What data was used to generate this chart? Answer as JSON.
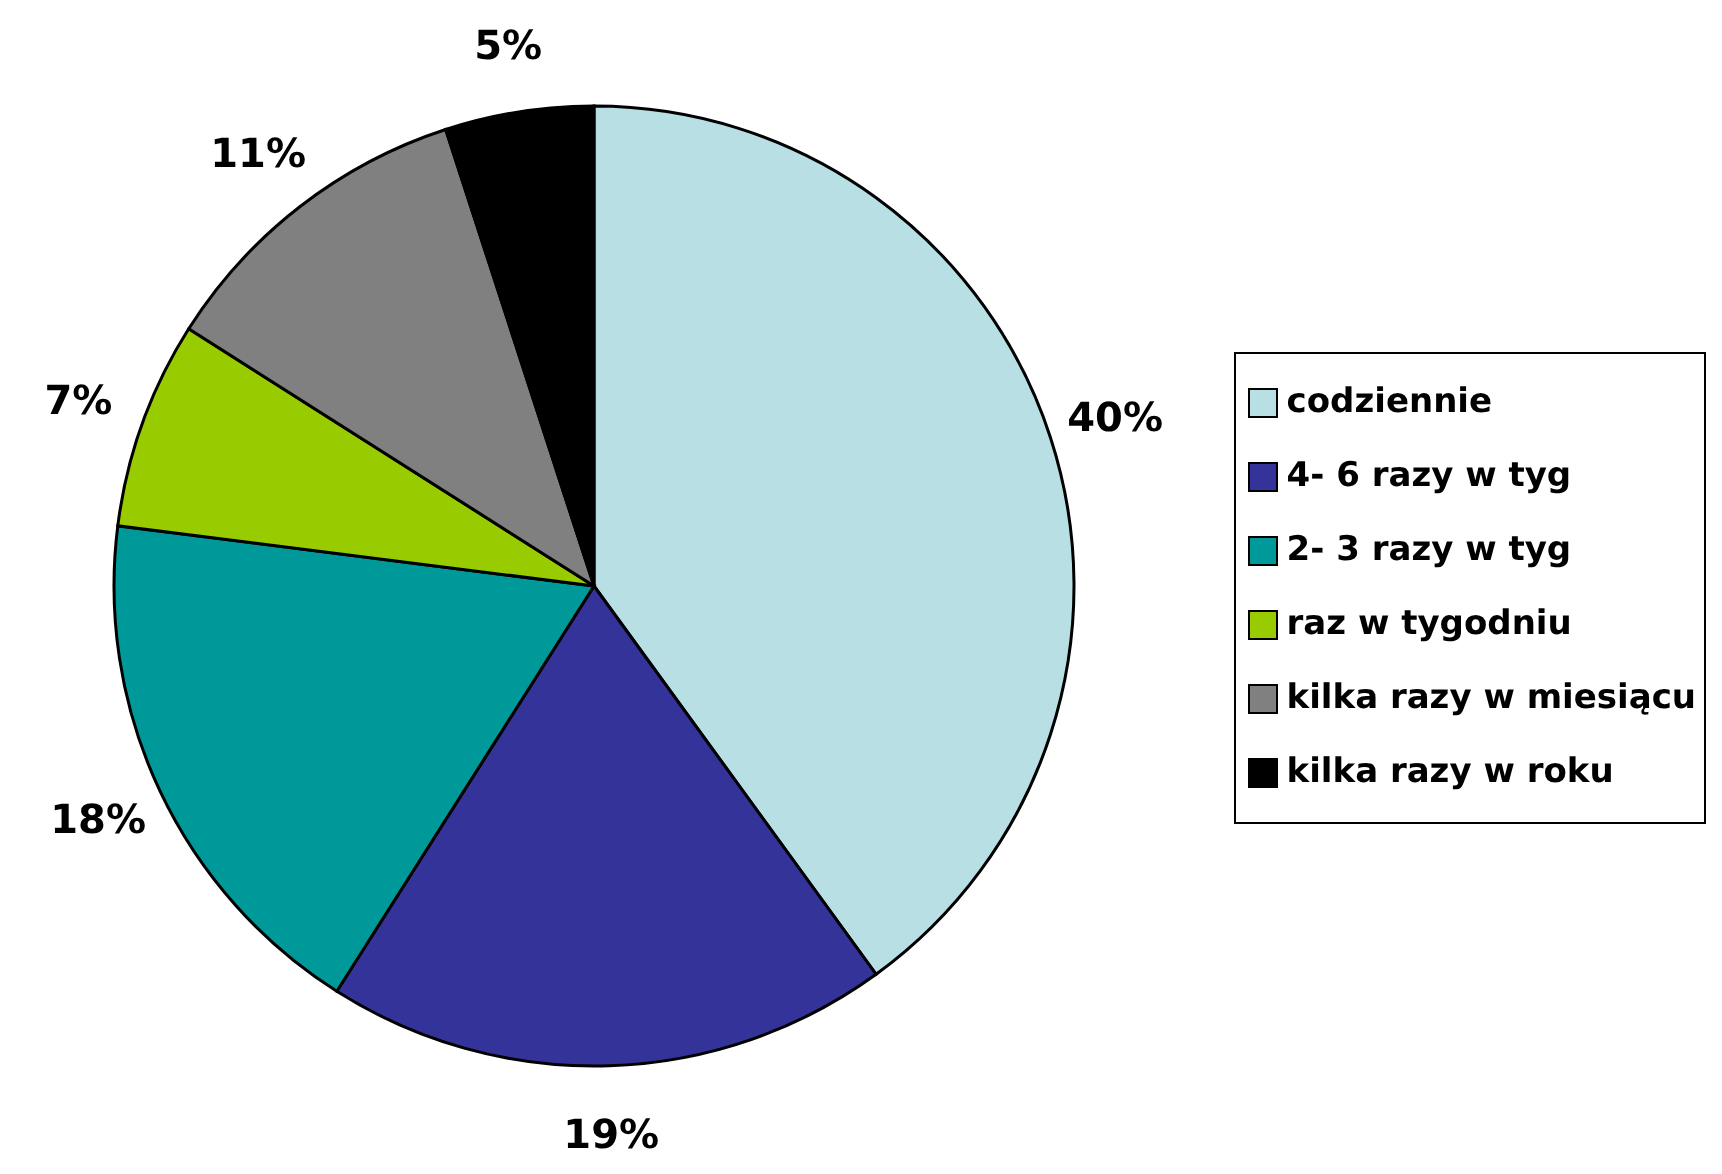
{
  "chart_data": {
    "type": "pie",
    "categories": [
      "codziennie",
      "4- 6 razy w tyg",
      "2- 3 razy w tyg",
      "raz w tygodniu",
      "kilka razy w miesiącu",
      "kilka razy w roku"
    ],
    "values": [
      40,
      19,
      18,
      7,
      11,
      5
    ],
    "colors": [
      "#b8e0e4",
      "#333399",
      "#009999",
      "#99cc00",
      "#808080",
      "#000000"
    ],
    "value_labels": [
      "40%",
      "19%",
      "18%",
      "7%",
      "11%",
      "5%"
    ],
    "legend": "right"
  }
}
